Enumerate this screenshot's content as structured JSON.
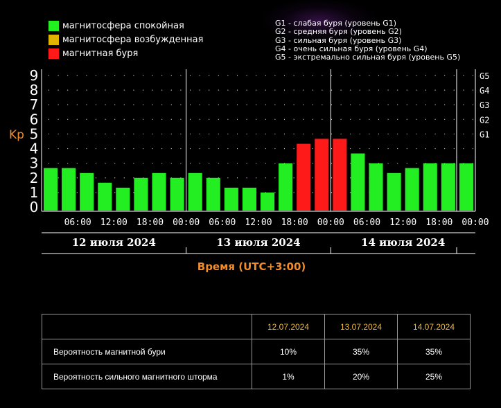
{
  "legend": [
    {
      "label": "магнитосфера спокойная",
      "color": "#22ee22"
    },
    {
      "label": "магнитосфера возбужденная",
      "color": "#e0b400"
    },
    {
      "label": "магнитная буря",
      "color": "#ff1a1a"
    }
  ],
  "storm_levels": [
    "G1 - слабая буря (уровень G1)",
    "G2 - средняя буря (уровень G2)",
    "G3 - сильная буря (уровень G3)",
    "G4 - очень сильная буря (уровень G4)",
    "G5 - экстремально сильная буря (уровень G5)"
  ],
  "chart_data": {
    "type": "bar",
    "ylabel": "Kp",
    "ylim": [
      0,
      9
    ],
    "yticks": [
      0,
      1,
      2,
      3,
      4,
      5,
      6,
      7,
      8,
      9
    ],
    "right_ticks": [
      {
        "value": 5,
        "label": "G1"
      },
      {
        "value": 6,
        "label": "G2"
      },
      {
        "value": 7,
        "label": "G3"
      },
      {
        "value": 8,
        "label": "G4"
      },
      {
        "value": 9,
        "label": "G5"
      }
    ],
    "time_labels": [
      "06:00",
      "12:00",
      "18:00",
      "00:00",
      "06:00",
      "12:00",
      "18:00",
      "00:00",
      "06:00",
      "12:00",
      "18:00",
      "00:00"
    ],
    "days": [
      "12 июля 2024",
      "13 июля 2024",
      "14 июля 2024"
    ],
    "xlabel": "Время (UTC+3:00)",
    "values": [
      2.67,
      2.67,
      2.33,
      1.67,
      1.33,
      2.0,
      2.33,
      2.0,
      2.33,
      2.0,
      1.33,
      1.33,
      1.0,
      3.0,
      4.33,
      4.67,
      4.67,
      3.67,
      3.0,
      2.33,
      2.67,
      3.0,
      3.0,
      3.0
    ],
    "colors": [
      "green",
      "green",
      "green",
      "green",
      "green",
      "green",
      "green",
      "green",
      "green",
      "green",
      "green",
      "green",
      "green",
      "green",
      "red",
      "red",
      "red",
      "green",
      "green",
      "green",
      "green",
      "green",
      "green",
      "green"
    ],
    "palette": {
      "green": "#22ee22",
      "yellow": "#e0b400",
      "red": "#ff1a1a"
    },
    "grid": "dotted",
    "axis_color": "#ffffff",
    "label_color": "#f08c2a"
  },
  "table": {
    "dates": [
      "12.07.2024",
      "13.07.2024",
      "14.07.2024"
    ],
    "rows": [
      {
        "label": "Вероятность магнитной бури",
        "values": [
          "10%",
          "35%",
          "35%"
        ]
      },
      {
        "label": "Вероятность сильного магнитного шторма",
        "values": [
          "1%",
          "20%",
          "25%"
        ]
      }
    ]
  }
}
